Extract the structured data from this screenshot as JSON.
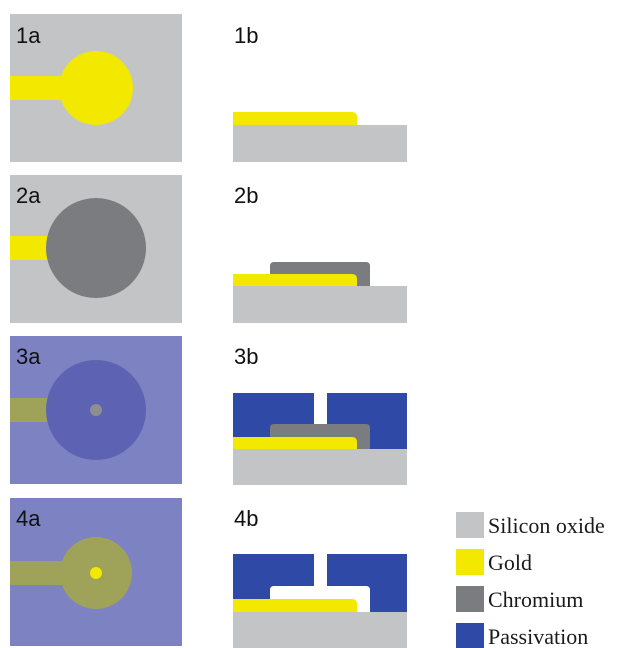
{
  "panels": {
    "p1a": "1a",
    "p1b": "1b",
    "p2a": "2a",
    "p2b": "2b",
    "p3a": "3a",
    "p3b": "3b",
    "p4a": "4a",
    "p4b": "4b"
  },
  "legend": [
    {
      "label": "Silicon oxide",
      "color": "#c3c4c6"
    },
    {
      "label": "Gold",
      "color": "#f2e800"
    },
    {
      "label": "Chromium",
      "color": "#7b7c80"
    },
    {
      "label": "Passivation",
      "color": "#2e4aa6"
    }
  ],
  "colors": {
    "silicon_oxide": "#c3c4c6",
    "gold": "#f2e800",
    "chromium": "#7b7c80",
    "passivation": "#2e4aa6",
    "passivated_top_bg": "#7c82c2",
    "passivated_top_gold": "#9fa35a",
    "passivated_top_chromium": "#5d63b2"
  }
}
